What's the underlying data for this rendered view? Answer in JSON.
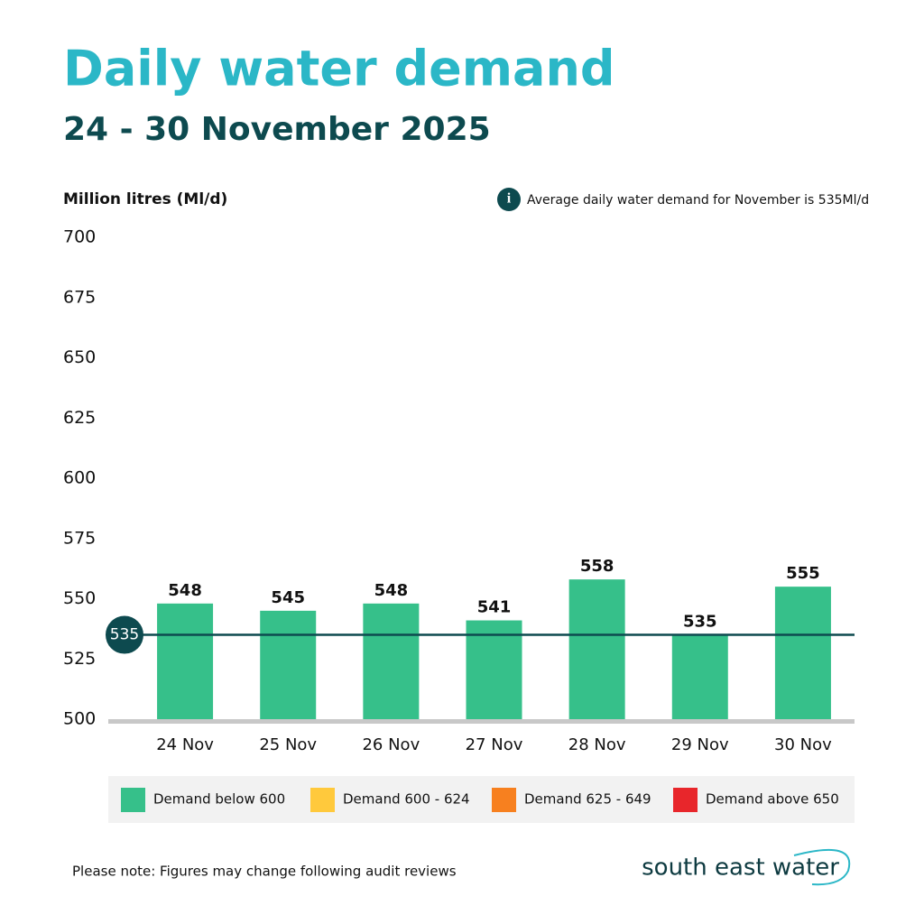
{
  "chart_data": {
    "type": "bar",
    "title": "Daily water demand",
    "subtitle": "24 - 30 November 2025",
    "y_label": "Million litres (Ml/d)",
    "note": "Average daily water demand for November  is 535Ml/d",
    "categories": [
      "24 Nov",
      "25 Nov",
      "26 Nov",
      "27 Nov",
      "28 Nov",
      "29 Nov",
      "30 Nov"
    ],
    "values": [
      548,
      545,
      548,
      541,
      558,
      535,
      555
    ],
    "color": "#36c08a",
    "ylim": [
      500,
      700
    ],
    "yticks": [
      500,
      525,
      550,
      575,
      600,
      625,
      650,
      675,
      700
    ],
    "grid": false,
    "average": {
      "value": 535,
      "color": "#0d4a4f"
    },
    "legend": [
      {
        "label": "Demand below 600",
        "color": "#36c08a"
      },
      {
        "label": "Demand 600 - 624",
        "color": "#ffc93c"
      },
      {
        "label": "Demand 625 - 649",
        "color": "#f7801f"
      },
      {
        "label": "Demand above 650",
        "color": "#e8262b"
      }
    ],
    "footnote": "Please note: Figures may change following audit reviews",
    "brand": "south east water"
  }
}
